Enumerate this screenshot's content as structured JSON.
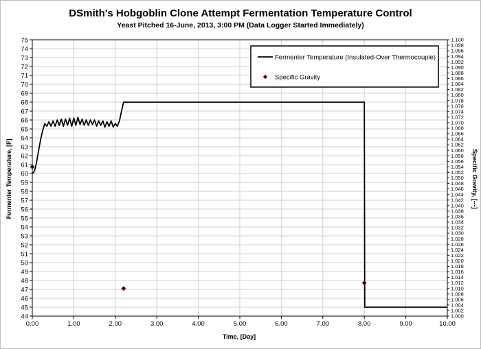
{
  "chart_data": {
    "type": "line",
    "title": "DSmith's Hobgoblin Clone Attempt Fermentation Temperature Control",
    "subtitle": "Yeast Pitched 16-June, 2013, 3:00 PM (Data Logger Started Immediately)",
    "xlabel": "Time, [Day]",
    "ylabel": "Fermenter Temperature, [F]",
    "y2label": "Specific Gravity, [---]",
    "xlim": [
      0,
      10
    ],
    "ylim": [
      44,
      75
    ],
    "y2lim": [
      1.0,
      1.1
    ],
    "x_ticks": [
      "0.00",
      "1.00",
      "2.00",
      "3.00",
      "4.00",
      "5.00",
      "6.00",
      "7.00",
      "8.00",
      "9.00",
      "10.00"
    ],
    "y_ticks": [
      "44",
      "45",
      "46",
      "47",
      "48",
      "49",
      "50",
      "51",
      "52",
      "53",
      "54",
      "55",
      "56",
      "57",
      "58",
      "59",
      "60",
      "61",
      "62",
      "63",
      "64",
      "65",
      "66",
      "67",
      "68",
      "69",
      "70",
      "71",
      "72",
      "73",
      "74",
      "75"
    ],
    "y2_ticks": [
      "1.000",
      "1.002",
      "1.004",
      "1.006",
      "1.008",
      "1.010",
      "1.012",
      "1.014",
      "1.016",
      "1.018",
      "1.020",
      "1.022",
      "1.024",
      "1.026",
      "1.028",
      "1.030",
      "1.032",
      "1.034",
      "1.036",
      "1.038",
      "1.040",
      "1.042",
      "1.044",
      "1.046",
      "1.048",
      "1.050",
      "1.052",
      "1.054",
      "1.056",
      "1.058",
      "1.060",
      "1.062",
      "1.064",
      "1.066",
      "1.068",
      "1.070",
      "1.072",
      "1.074",
      "1.076",
      "1.078",
      "1.080",
      "1.082",
      "1.084",
      "1.086",
      "1.088",
      "1.090",
      "1.092",
      "1.094",
      "1.096",
      "1.098",
      "1.100"
    ],
    "grid": true,
    "legend_position": "top-right",
    "series": [
      {
        "name": "Fermenter Temperature (Insulated-Over Thermocouple)",
        "kind": "line",
        "color": "#000000",
        "axis": "left",
        "x": [
          0.0,
          0.03,
          0.06,
          0.1,
          0.15,
          0.2,
          0.25,
          0.3,
          0.35,
          0.4,
          0.45,
          0.5,
          0.55,
          0.6,
          0.65,
          0.7,
          0.75,
          0.8,
          0.85,
          0.9,
          0.95,
          1.0,
          1.05,
          1.1,
          1.15,
          1.2,
          1.25,
          1.3,
          1.35,
          1.4,
          1.45,
          1.5,
          1.55,
          1.6,
          1.65,
          1.7,
          1.75,
          1.8,
          1.85,
          1.9,
          1.95,
          2.0,
          2.05,
          2.1,
          2.15,
          2.2,
          2.22,
          8.0,
          8.01,
          10.0
        ],
        "y": [
          60.0,
          60.1,
          60.4,
          61.2,
          62.5,
          63.8,
          64.8,
          65.6,
          65.3,
          65.8,
          65.3,
          65.9,
          65.3,
          66.0,
          65.4,
          66.1,
          65.3,
          66.1,
          65.4,
          66.2,
          65.3,
          66.2,
          65.4,
          66.3,
          65.5,
          66.1,
          65.4,
          66.0,
          65.4,
          66.0,
          65.5,
          66.0,
          65.3,
          65.9,
          65.4,
          65.9,
          65.2,
          65.8,
          65.3,
          65.9,
          65.2,
          65.6,
          65.3,
          65.9,
          67.0,
          68.0,
          68.0,
          68.0,
          45.0,
          45.0
        ]
      },
      {
        "name": "Specific Gravity",
        "kind": "scatter",
        "marker": "diamond",
        "color": "#3a0a0a",
        "axis": "right",
        "x": [
          0.0,
          2.2,
          8.0
        ],
        "y": [
          1.054,
          1.01,
          1.012
        ]
      }
    ]
  }
}
